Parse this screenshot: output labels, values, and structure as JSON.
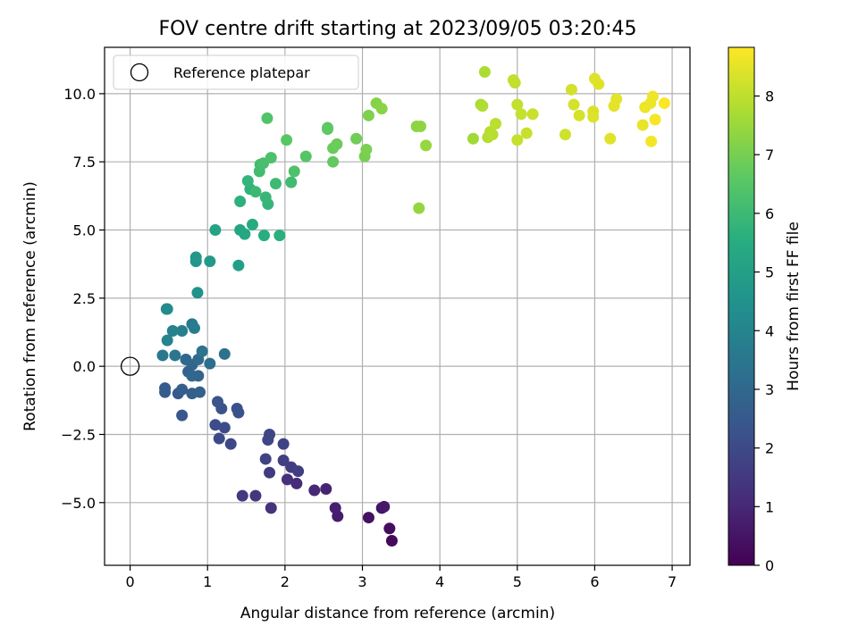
{
  "chart_data": {
    "type": "scatter",
    "title": "FOV centre drift starting at 2023/09/05 03:20:45",
    "xlabel": "Angular distance from reference (arcmin)",
    "ylabel": "Rotation from reference (arcmin)",
    "xlim": [
      -0.33,
      7.23
    ],
    "ylim": [
      -7.3,
      11.7
    ],
    "xticks": [
      0,
      1,
      2,
      3,
      4,
      5,
      6,
      7
    ],
    "xtick_labels": [
      "0",
      "1",
      "2",
      "3",
      "4",
      "5",
      "6",
      "7"
    ],
    "yticks": [
      -5.0,
      -2.5,
      0.0,
      2.5,
      5.0,
      7.5,
      10.0
    ],
    "ytick_labels": [
      "−5.0",
      "−2.5",
      "0.0",
      "2.5",
      "5.0",
      "7.5",
      "10.0"
    ],
    "grid": true,
    "legend": {
      "location": "upper-left",
      "entries": [
        "Reference platepar"
      ]
    },
    "reference_point": {
      "name": "Reference platepar",
      "x": 0,
      "y": 0
    },
    "colorbar": {
      "label": "Hours from first FF file",
      "colormap": "viridis",
      "range": [
        0,
        8.83
      ],
      "ticks": [
        0,
        1,
        2,
        3,
        4,
        5,
        6,
        7,
        8
      ],
      "tick_labels": [
        "0",
        "1",
        "2",
        "3",
        "4",
        "5",
        "6",
        "7",
        "8"
      ]
    },
    "points": [
      [
        3.38,
        -6.4,
        0.2
      ],
      [
        3.35,
        -5.95,
        0.3
      ],
      [
        3.08,
        -5.55,
        0.4
      ],
      [
        3.25,
        -5.2,
        0.5
      ],
      [
        3.28,
        -5.15,
        0.6
      ],
      [
        2.68,
        -5.5,
        0.7
      ],
      [
        2.65,
        -5.2,
        0.8
      ],
      [
        2.53,
        -4.5,
        0.9
      ],
      [
        2.38,
        -4.55,
        1.0
      ],
      [
        2.15,
        -4.3,
        1.1
      ],
      [
        2.03,
        -4.15,
        1.2
      ],
      [
        1.82,
        -5.2,
        1.3
      ],
      [
        1.62,
        -4.75,
        1.4
      ],
      [
        1.45,
        -4.75,
        1.5
      ],
      [
        1.8,
        -3.9,
        1.55
      ],
      [
        2.08,
        -3.7,
        1.6
      ],
      [
        2.17,
        -3.85,
        1.65
      ],
      [
        1.98,
        -3.45,
        1.7
      ],
      [
        1.75,
        -3.4,
        1.75
      ],
      [
        1.98,
        -2.85,
        1.8
      ],
      [
        1.8,
        -2.5,
        1.85
      ],
      [
        1.78,
        -2.7,
        1.9
      ],
      [
        1.3,
        -2.85,
        1.95
      ],
      [
        1.15,
        -2.65,
        2.0
      ],
      [
        1.22,
        -2.25,
        2.05
      ],
      [
        1.1,
        -2.15,
        2.1
      ],
      [
        1.38,
        -1.55,
        2.2
      ],
      [
        1.4,
        -1.7,
        2.25
      ],
      [
        1.18,
        -1.55,
        2.3
      ],
      [
        1.13,
        -1.3,
        2.35
      ],
      [
        0.67,
        -1.8,
        2.4
      ],
      [
        0.62,
        -1.0,
        2.5
      ],
      [
        0.45,
        -0.95,
        2.55
      ],
      [
        0.45,
        -0.8,
        2.6
      ],
      [
        0.67,
        -0.85,
        2.65
      ],
      [
        0.8,
        -1.0,
        2.7
      ],
      [
        0.9,
        -0.95,
        2.75
      ],
      [
        0.75,
        -0.2,
        2.8
      ],
      [
        0.88,
        -0.35,
        2.85
      ],
      [
        0.8,
        0.05,
        2.9
      ],
      [
        0.8,
        -0.35,
        2.95
      ],
      [
        0.72,
        0.25,
        3.0
      ],
      [
        0.88,
        0.25,
        3.1
      ],
      [
        1.03,
        0.1,
        3.2
      ],
      [
        1.22,
        0.45,
        3.3
      ],
      [
        0.93,
        0.55,
        3.4
      ],
      [
        0.58,
        0.4,
        3.5
      ],
      [
        0.42,
        0.4,
        3.55
      ],
      [
        0.8,
        1.55,
        3.6
      ],
      [
        0.83,
        1.4,
        3.7
      ],
      [
        0.67,
        1.3,
        3.8
      ],
      [
        0.55,
        1.3,
        3.9
      ],
      [
        0.48,
        0.95,
        4.0
      ],
      [
        0.47,
        2.1,
        4.1
      ],
      [
        0.48,
        2.1,
        4.2
      ],
      [
        0.87,
        2.7,
        4.5
      ],
      [
        0.85,
        3.85,
        4.6
      ],
      [
        0.85,
        4.0,
        4.7
      ],
      [
        1.03,
        3.85,
        4.8
      ],
      [
        1.4,
        3.7,
        5.0
      ],
      [
        1.1,
        5.0,
        5.1
      ],
      [
        1.42,
        5.0,
        5.2
      ],
      [
        1.48,
        4.85,
        5.3
      ],
      [
        1.58,
        5.2,
        5.4
      ],
      [
        1.73,
        4.8,
        5.5
      ],
      [
        1.93,
        4.8,
        5.6
      ],
      [
        1.42,
        6.05,
        5.65
      ],
      [
        1.55,
        6.5,
        5.7
      ],
      [
        1.52,
        6.8,
        5.8
      ],
      [
        1.78,
        5.95,
        5.85
      ],
      [
        1.75,
        6.2,
        5.9
      ],
      [
        1.62,
        6.4,
        5.95
      ],
      [
        1.88,
        6.7,
        6.0
      ],
      [
        2.08,
        6.75,
        6.05
      ],
      [
        1.67,
        7.15,
        6.1
      ],
      [
        1.68,
        7.4,
        6.15
      ],
      [
        1.72,
        7.45,
        6.2
      ],
      [
        1.82,
        7.65,
        6.3
      ],
      [
        2.12,
        7.15,
        6.35
      ],
      [
        1.77,
        9.1,
        6.4
      ],
      [
        2.27,
        7.7,
        6.5
      ],
      [
        2.02,
        8.3,
        6.55
      ],
      [
        2.55,
        8.7,
        6.6
      ],
      [
        2.55,
        8.75,
        6.65
      ],
      [
        2.62,
        7.5,
        6.7
      ],
      [
        2.62,
        8.0,
        6.8
      ],
      [
        2.67,
        8.15,
        6.85
      ],
      [
        2.92,
        8.35,
        6.9
      ],
      [
        3.03,
        7.7,
        7.0
      ],
      [
        3.05,
        7.95,
        7.05
      ],
      [
        3.08,
        9.2,
        7.1
      ],
      [
        3.18,
        9.65,
        7.2
      ],
      [
        3.25,
        9.45,
        7.25
      ],
      [
        3.7,
        8.8,
        7.3
      ],
      [
        3.75,
        8.8,
        7.35
      ],
      [
        3.73,
        5.8,
        7.4
      ],
      [
        3.82,
        8.1,
        7.45
      ],
      [
        4.43,
        8.35,
        7.6
      ],
      [
        4.53,
        9.6,
        7.7
      ],
      [
        4.58,
        10.8,
        7.75
      ],
      [
        4.55,
        9.55,
        7.8
      ],
      [
        4.62,
        8.4,
        7.85
      ],
      [
        4.65,
        8.6,
        7.88
      ],
      [
        4.68,
        8.5,
        7.9
      ],
      [
        4.72,
        8.9,
        7.95
      ],
      [
        4.97,
        10.4,
        8.0
      ],
      [
        4.95,
        10.5,
        8.03
      ],
      [
        5.0,
        9.6,
        8.05
      ],
      [
        5.0,
        8.3,
        8.08
      ],
      [
        5.05,
        9.25,
        8.1
      ],
      [
        5.12,
        8.55,
        8.12
      ],
      [
        5.2,
        9.25,
        8.15
      ],
      [
        5.62,
        8.5,
        8.2
      ],
      [
        5.7,
        10.15,
        8.25
      ],
      [
        5.73,
        9.6,
        8.28
      ],
      [
        5.8,
        9.2,
        8.3
      ],
      [
        5.98,
        9.35,
        8.35
      ],
      [
        5.98,
        9.15,
        8.38
      ],
      [
        6.0,
        10.55,
        8.4
      ],
      [
        6.05,
        10.35,
        8.42
      ],
      [
        6.2,
        8.35,
        8.45
      ],
      [
        6.25,
        9.55,
        8.48
      ],
      [
        6.28,
        9.8,
        8.5
      ],
      [
        6.62,
        8.85,
        8.55
      ],
      [
        6.65,
        9.5,
        8.6
      ],
      [
        6.72,
        9.65,
        8.62
      ],
      [
        6.75,
        9.9,
        8.65
      ],
      [
        6.73,
        8.25,
        8.7
      ],
      [
        6.78,
        9.05,
        8.75
      ],
      [
        6.9,
        9.65,
        8.8
      ]
    ]
  }
}
